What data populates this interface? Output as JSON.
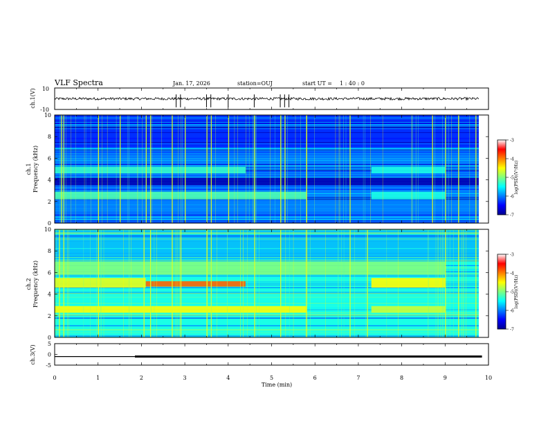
{
  "header": {
    "title": "VLF Spectra",
    "date": "Jan. 17, 2026",
    "station": "station=OUJ",
    "start_label": "start  UT =",
    "start_time": "1 : 40 : 0"
  },
  "chart_data": [
    {
      "type": "line",
      "id": "ch1-waveform",
      "ylabel": "ch.1(V)",
      "ylim": [
        -10,
        10
      ],
      "yticks": [
        "10",
        "-10"
      ],
      "xlim": [
        0,
        10
      ],
      "baseline": 0,
      "spike_times_min": [
        2.8,
        2.9,
        3.5,
        3.6,
        4.0,
        4.6,
        5.2,
        5.3,
        5.4
      ]
    },
    {
      "type": "heatmap",
      "id": "ch1-spectrogram",
      "channel": "ch.1",
      "ylabel": "Frequency (kHz)",
      "xlim": [
        0,
        10
      ],
      "ylim": [
        0,
        10
      ],
      "yticks": [
        "0",
        "2",
        "4",
        "6",
        "8",
        "10"
      ],
      "colorbar": {
        "label": "log(PSD)(V²/Hz)",
        "ticks": [
          "-3",
          "-4",
          "-5",
          "-6",
          "-7"
        ],
        "range": [
          -7,
          -3
        ]
      },
      "background_level": -6.0,
      "bands": [
        {
          "f_low": 4.6,
          "f_high": 5.2,
          "t_start": 0.0,
          "t_end": 4.4,
          "level": -5.3
        },
        {
          "f_low": 4.6,
          "f_high": 5.2,
          "t_start": 7.3,
          "t_end": 9.0,
          "level": -5.4
        },
        {
          "f_low": 2.2,
          "f_high": 2.9,
          "t_start": 0.0,
          "t_end": 5.8,
          "level": -5.2
        },
        {
          "f_low": 2.2,
          "f_high": 2.9,
          "t_start": 7.3,
          "t_end": 9.0,
          "level": -5.4
        },
        {
          "f_low": 3.5,
          "f_high": 4.2,
          "t_start": 0.0,
          "t_end": 10.0,
          "level": -6.8
        }
      ],
      "spike_times_min": [
        0.15,
        0.2,
        1.0,
        1.5,
        2.1,
        2.2,
        2.7,
        3.0,
        3.5,
        3.6,
        4.0,
        4.6,
        5.2,
        5.3,
        5.8,
        6.8,
        8.7,
        9.0,
        9.3,
        9.7
      ]
    },
    {
      "type": "heatmap",
      "id": "ch2-spectrogram",
      "channel": "ch.2",
      "ylabel": "Frequency (kHz)",
      "xlim": [
        0,
        10
      ],
      "ylim": [
        0,
        10
      ],
      "yticks": [
        "0",
        "2",
        "4",
        "6",
        "8",
        "10"
      ],
      "colorbar": {
        "label": "log(PSD)(V²/Hz)",
        "ticks": [
          "-3",
          "-4",
          "-5",
          "-6",
          "-7"
        ],
        "range": [
          -7,
          -3
        ]
      },
      "background_level": -5.4,
      "bands": [
        {
          "f_low": 4.6,
          "f_high": 5.5,
          "t_start": 0.0,
          "t_end": 2.1,
          "level": -4.6
        },
        {
          "f_low": 4.7,
          "f_high": 5.2,
          "t_start": 2.1,
          "t_end": 4.4,
          "level": -3.9
        },
        {
          "f_low": 4.6,
          "f_high": 5.5,
          "t_start": 7.3,
          "t_end": 9.0,
          "level": -4.5
        },
        {
          "f_low": 2.3,
          "f_high": 2.9,
          "t_start": 0.0,
          "t_end": 5.8,
          "level": -4.5
        },
        {
          "f_low": 2.3,
          "f_high": 2.9,
          "t_start": 7.3,
          "t_end": 9.0,
          "level": -4.7
        },
        {
          "f_low": 5.8,
          "f_high": 7.0,
          "t_start": 0.0,
          "t_end": 9.0,
          "level": -5.0
        }
      ],
      "spike_times_min": [
        0.1,
        0.2,
        1.0,
        2.05,
        2.2,
        2.7,
        2.9,
        3.5,
        3.6,
        4.6,
        5.2,
        5.8,
        6.8,
        7.2,
        9.0,
        9.3,
        9.7
      ]
    },
    {
      "type": "line",
      "id": "ch3-trace",
      "ylabel": "ch.3(V)",
      "ylim": [
        -5,
        5
      ],
      "yticks": [
        "5",
        "0",
        "-5"
      ],
      "xlim": [
        0,
        10
      ],
      "segments": [
        {
          "t_start": 0.0,
          "t_end": 1.85,
          "value": -1.0,
          "weight": "thin"
        },
        {
          "t_start": 1.85,
          "t_end": 9.85,
          "value": -1.0,
          "weight": "thick"
        }
      ]
    }
  ],
  "xaxis": {
    "label": "Time  (min)",
    "ticks": [
      "0",
      "1",
      "2",
      "3",
      "4",
      "5",
      "6",
      "7",
      "8",
      "9",
      "10"
    ],
    "range": [
      0,
      10
    ]
  }
}
